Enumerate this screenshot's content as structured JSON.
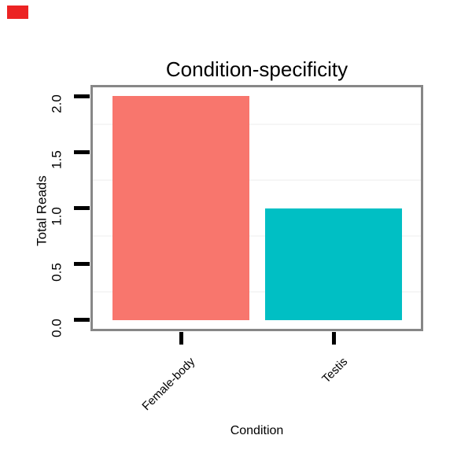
{
  "figure": {
    "background": "#FFFFFF"
  },
  "marker": {
    "description": "small red rectangle artifact at top-left corner",
    "color": "#EC2323"
  },
  "chart_data": {
    "type": "bar",
    "title": "Condition-specificity",
    "xlabel": "Condition",
    "ylabel": "Total Reads",
    "categories": [
      "Female-body",
      "Testis"
    ],
    "values": [
      2,
      1
    ],
    "bar_colors": [
      "#F8766D",
      "#00BFC4"
    ],
    "ylim": [
      -0.1,
      2.1
    ],
    "yticks": [
      0.0,
      0.5,
      1.0,
      1.5,
      2.0
    ],
    "ytick_labels": [
      "0.0",
      "0.5",
      "1.0",
      "1.5",
      "2.0"
    ],
    "minor_gridlines": [
      0.25,
      0.75,
      1.25,
      1.75
    ],
    "grid": "minor-horizontal-only",
    "legend": "none",
    "xtick_label_rotation_deg": 45,
    "ytick_label_rotation_deg": 90,
    "panel_border_color": "#878787",
    "gridline_color": "#F6F6F6",
    "tick_color": "#000000",
    "text_color": "#000000"
  }
}
